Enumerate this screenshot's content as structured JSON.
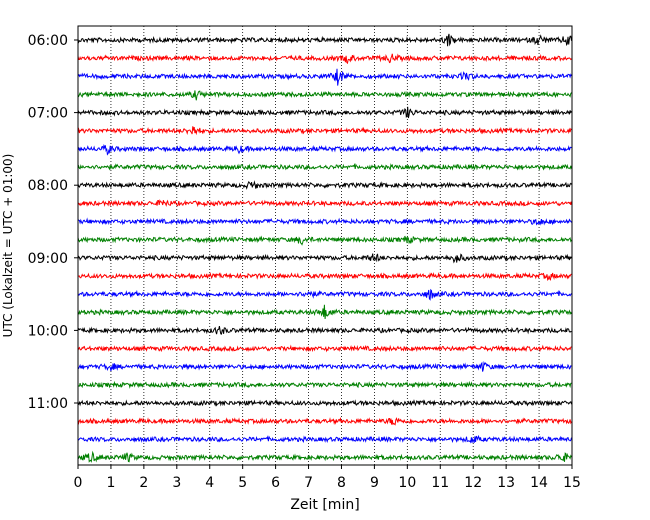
{
  "chart_data": {
    "type": "line",
    "subtype": "helicorder",
    "xlabel": "Zeit  [min]",
    "ylabel": "UTC (Lokalzeit = UTC + 01:00)",
    "xlim": [
      0,
      15
    ],
    "x_ticks": [
      "0",
      "1",
      "2",
      "3",
      "4",
      "5",
      "6",
      "7",
      "8",
      "9",
      "10",
      "11",
      "12",
      "13",
      "14",
      "15"
    ],
    "y_ticks": [
      "06:00",
      "07:00",
      "08:00",
      "09:00",
      "10:00",
      "11:00"
    ],
    "rows_per_hour": 4,
    "trace_colors": [
      "#000000",
      "#ff0000",
      "#0000ff",
      "#008000"
    ],
    "rows": [
      {
        "time": "06:00",
        "color": "#000000",
        "events": [
          {
            "min": 11.25,
            "amp": 6
          },
          {
            "min": 14.0,
            "amp": 5
          },
          {
            "min": 14.9,
            "amp": 7
          }
        ]
      },
      {
        "time": "06:15",
        "color": "#ff0000",
        "events": [
          {
            "min": 8.2,
            "amp": 4
          },
          {
            "min": 9.5,
            "amp": 4
          }
        ]
      },
      {
        "time": "06:30",
        "color": "#0000ff",
        "events": [
          {
            "min": 7.9,
            "amp": 8
          },
          {
            "min": 11.8,
            "amp": 4
          }
        ]
      },
      {
        "time": "06:45",
        "color": "#008000",
        "events": [
          {
            "min": 3.6,
            "amp": 4
          }
        ]
      },
      {
        "time": "07:00",
        "color": "#000000",
        "events": [
          {
            "min": 10.0,
            "amp": 5
          }
        ]
      },
      {
        "time": "07:15",
        "color": "#ff0000",
        "events": [
          {
            "min": 3.5,
            "amp": 5
          }
        ]
      },
      {
        "time": "07:30",
        "color": "#0000ff",
        "events": [
          {
            "min": 0.9,
            "amp": 4
          },
          {
            "min": 4.9,
            "amp": 3
          }
        ]
      },
      {
        "time": "07:45",
        "color": "#008000",
        "events": []
      },
      {
        "time": "08:00",
        "color": "#000000",
        "events": [
          {
            "min": 5.3,
            "amp": 4
          }
        ]
      },
      {
        "time": "08:15",
        "color": "#ff0000",
        "events": [
          {
            "min": 2.6,
            "amp": 3
          }
        ]
      },
      {
        "time": "08:30",
        "color": "#0000ff",
        "events": [
          {
            "min": 14.0,
            "amp": 3
          }
        ]
      },
      {
        "time": "08:45",
        "color": "#008000",
        "events": [
          {
            "min": 6.8,
            "amp": 4
          },
          {
            "min": 10.0,
            "amp": 3
          }
        ]
      },
      {
        "time": "09:00",
        "color": "#000000",
        "events": [
          {
            "min": 9.0,
            "amp": 4
          },
          {
            "min": 11.5,
            "amp": 5
          }
        ]
      },
      {
        "time": "09:15",
        "color": "#ff0000",
        "events": [
          {
            "min": 14.3,
            "amp": 3
          }
        ]
      },
      {
        "time": "09:30",
        "color": "#0000ff",
        "events": [
          {
            "min": 7.0,
            "amp": 3
          },
          {
            "min": 10.7,
            "amp": 5
          }
        ]
      },
      {
        "time": "09:45",
        "color": "#008000",
        "events": [
          {
            "min": 7.5,
            "amp": 7
          }
        ]
      },
      {
        "time": "10:00",
        "color": "#000000",
        "events": [
          {
            "min": 4.3,
            "amp": 4
          }
        ]
      },
      {
        "time": "10:15",
        "color": "#ff0000",
        "events": []
      },
      {
        "time": "10:30",
        "color": "#0000ff",
        "events": [
          {
            "min": 1.0,
            "amp": 3
          },
          {
            "min": 12.3,
            "amp": 4
          }
        ]
      },
      {
        "time": "10:45",
        "color": "#008000",
        "events": []
      },
      {
        "time": "11:00",
        "color": "#000000",
        "events": []
      },
      {
        "time": "11:15",
        "color": "#ff0000",
        "events": [
          {
            "min": 9.6,
            "amp": 4
          }
        ]
      },
      {
        "time": "11:30",
        "color": "#0000ff",
        "events": [
          {
            "min": 12.0,
            "amp": 4
          }
        ]
      },
      {
        "time": "11:45",
        "color": "#008000",
        "events": [
          {
            "min": 0.4,
            "amp": 5
          },
          {
            "min": 1.5,
            "amp": 4
          },
          {
            "min": 14.7,
            "amp": 5
          }
        ]
      }
    ],
    "grid": "vertical-dotted",
    "legend": "none"
  }
}
